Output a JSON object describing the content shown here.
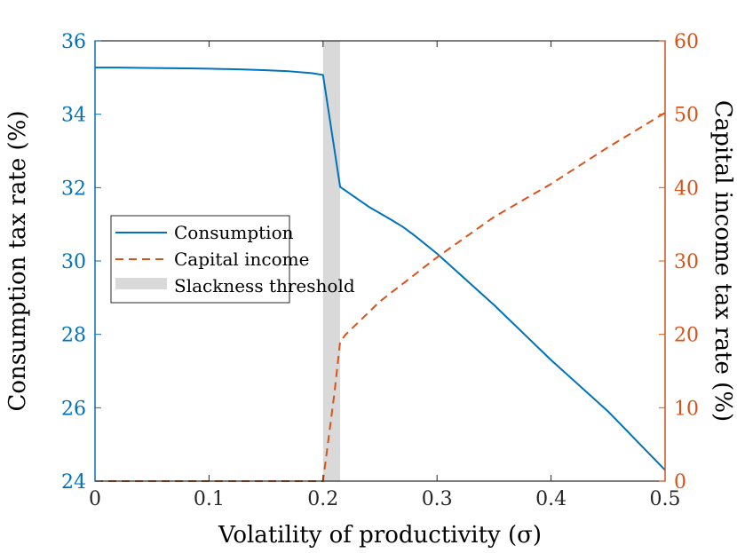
{
  "chart_data": {
    "type": "line",
    "xlabel": "Volatility of productivity (σ)",
    "ylabel_left": "Consumption tax rate (%)",
    "ylabel_right": "Capital income tax rate (%)",
    "xlim": [
      0,
      0.5
    ],
    "ylim_left": [
      24,
      36
    ],
    "ylim_right": [
      0,
      60
    ],
    "x_ticks": [
      "0",
      "0.1",
      "0.2",
      "0.3",
      "0.4",
      "0.5"
    ],
    "y_left_ticks": [
      "24",
      "26",
      "28",
      "30",
      "32",
      "34",
      "36"
    ],
    "y_right_ticks": [
      "0",
      "10",
      "20",
      "30",
      "40",
      "50",
      "60"
    ],
    "grid": false,
    "legend_position": "middle-left",
    "series": [
      {
        "name": "Consumption",
        "axis": "left",
        "style": "solid",
        "color": "#0072BD",
        "x": [
          0,
          0.02,
          0.05,
          0.08,
          0.1,
          0.13,
          0.15,
          0.17,
          0.19,
          0.2,
          0.215,
          0.24,
          0.26,
          0.27,
          0.28,
          0.3,
          0.35,
          0.4,
          0.45,
          0.5
        ],
        "values": [
          35.27,
          35.27,
          35.26,
          35.25,
          35.24,
          35.22,
          35.2,
          35.17,
          35.12,
          35.07,
          32.02,
          31.48,
          31.12,
          30.93,
          30.7,
          30.2,
          28.8,
          27.3,
          25.9,
          24.3
        ]
      },
      {
        "name": "Capital income",
        "axis": "right",
        "style": "dashed",
        "color": "#D95319",
        "x": [
          0,
          0.1,
          0.2,
          0.205,
          0.21,
          0.215,
          0.22,
          0.25,
          0.3,
          0.35,
          0.4,
          0.45,
          0.5
        ],
        "values": [
          0,
          0,
          0,
          6,
          12,
          19,
          20,
          24.5,
          30.5,
          36,
          40.5,
          45.5,
          50.2
        ]
      }
    ],
    "shaded_region": {
      "name": "Slackness threshold",
      "x_start": 0.2,
      "x_end": 0.215,
      "color": "#d9d9d9"
    }
  }
}
